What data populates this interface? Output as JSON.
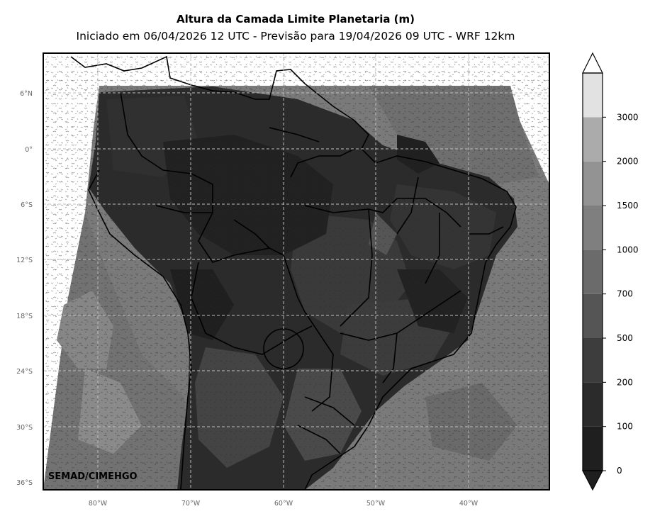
{
  "map": {
    "title": "Altura da Camada Limite Planetaria (m)",
    "subtitle": "Iniciado em 06/04/2026 12 UTC - Previsão para 19/04/2026 09 UTC - WRF 12km",
    "credit": "SEMAD/CIMEHGO",
    "lat_labels": [
      "6°N",
      "0°",
      "6°S",
      "12°S",
      "18°S",
      "24°S",
      "30°S",
      "36°S"
    ],
    "lon_labels": [
      "80°W",
      "70°W",
      "60°W",
      "50°W",
      "40°W"
    ],
    "grid": true,
    "colorbar": {
      "levels": [
        "0",
        "100",
        "200",
        "500",
        "700",
        "1000",
        "1500",
        "2000",
        "3000"
      ],
      "colors": [
        "#1f1f1f",
        "#2b2b2b",
        "#3d3d3d",
        "#555555",
        "#6b6b6b",
        "#7f7f7f",
        "#939393",
        "#ababab",
        "#e2e2e2"
      ],
      "extend": "both"
    }
  }
}
